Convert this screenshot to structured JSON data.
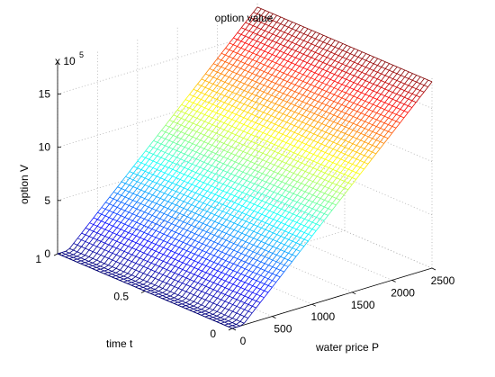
{
  "chart_data": {
    "type": "surface-mesh",
    "title": "option value",
    "xlabel": "water price P",
    "ylabel": "time t",
    "zlabel": "option V",
    "z_multiplier_label": "x 10",
    "z_multiplier_exponent": "5",
    "xlim": [
      0,
      2500
    ],
    "ylim": [
      0,
      1
    ],
    "zlim": [
      0,
      18
    ],
    "xticks": [
      "0",
      "500",
      "1000",
      "1500",
      "2000",
      "2500"
    ],
    "yticks": [
      "0",
      "0.5",
      "1"
    ],
    "zticks": [
      "0",
      "5",
      "10",
      "15"
    ],
    "colormap": "jet",
    "grid": true,
    "surface": {
      "description_values": "V(P,t) ≈ max(0, P − K)·scale, constant in t",
      "V_at_P0": 0,
      "V_at_P2500": 17.5,
      "kink_P": 130
    }
  }
}
